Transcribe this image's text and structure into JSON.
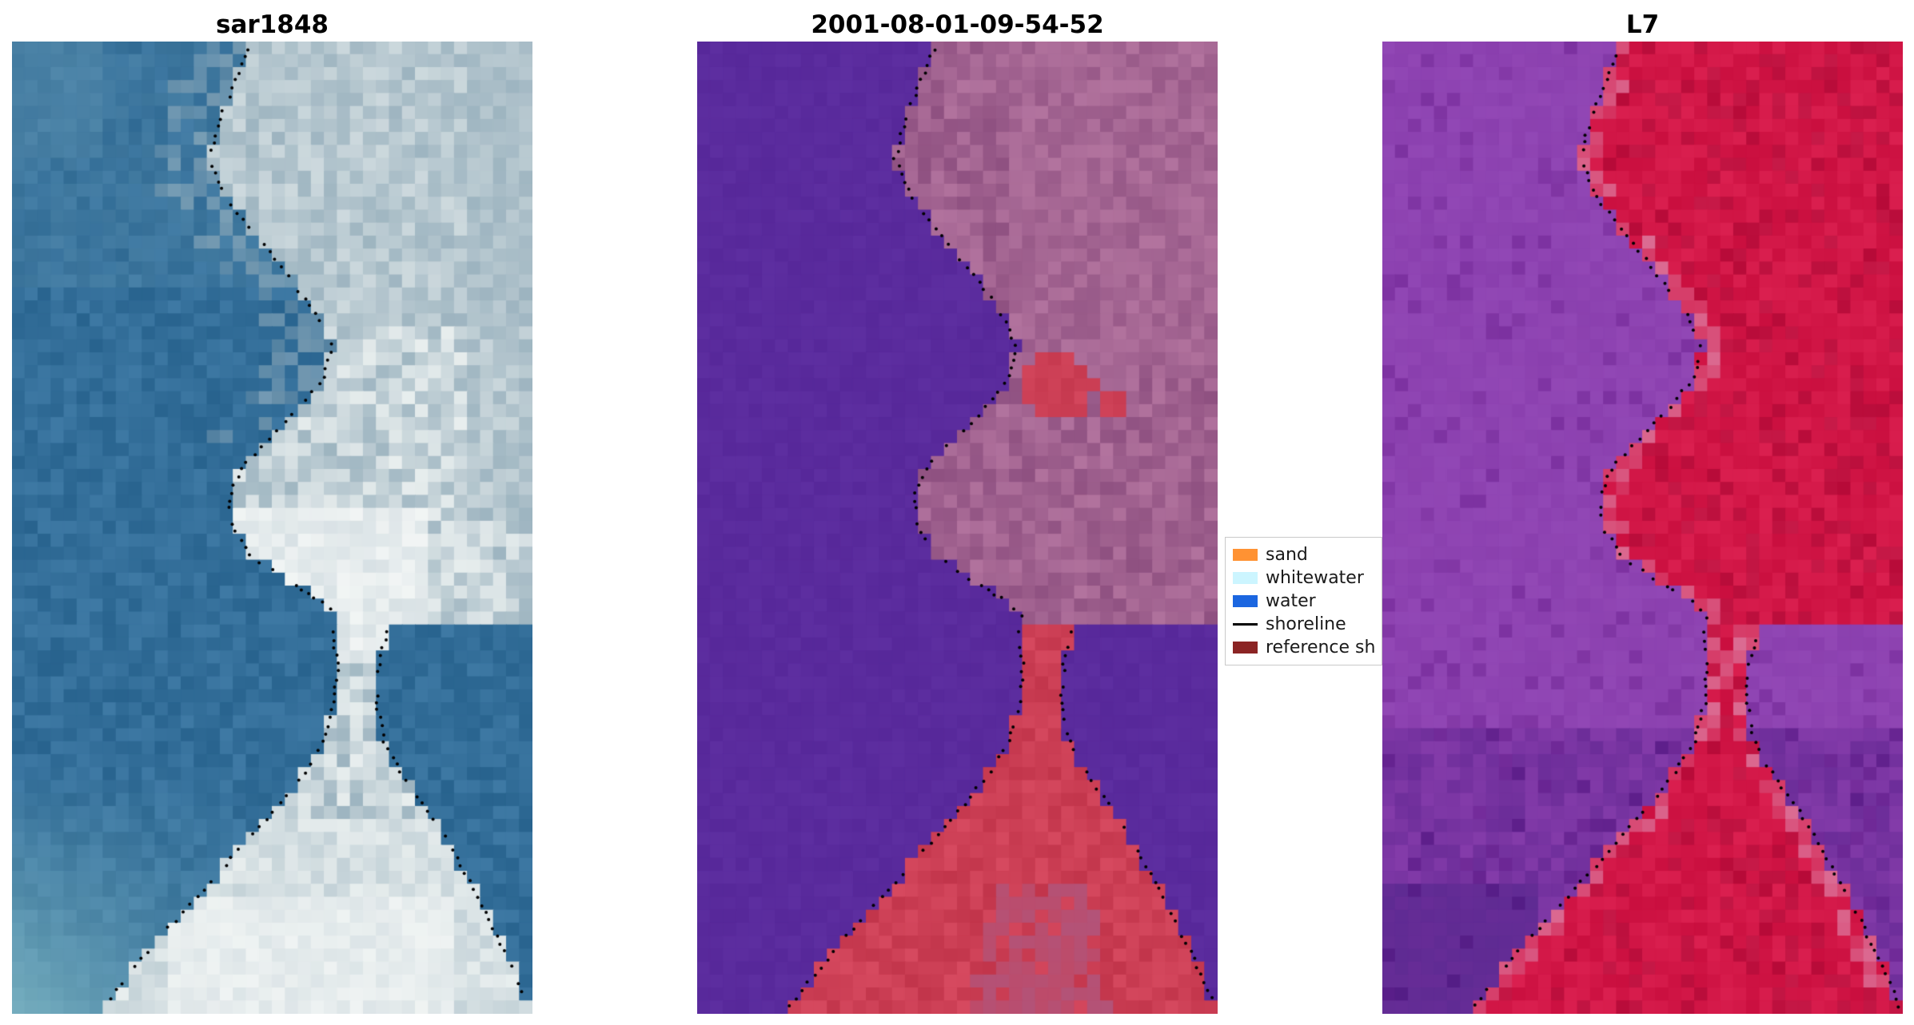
{
  "figure": {
    "background": "#ffffff",
    "panels": [
      {
        "id": "sar1848",
        "title": "sar1848"
      },
      {
        "id": "classified",
        "title": "2001-08-01-09-54-52"
      },
      {
        "id": "l7",
        "title": "L7"
      }
    ],
    "legend": {
      "items": [
        {
          "label": "sand",
          "type": "patch",
          "color": "#ff9233"
        },
        {
          "label": "whitewater",
          "type": "patch",
          "color": "#ccf5ff"
        },
        {
          "label": "water",
          "type": "patch",
          "color": "#1b66e0"
        },
        {
          "label": "shoreline",
          "type": "line",
          "color": "#000000"
        },
        {
          "label": "reference sh",
          "type": "patch",
          "color": "#8b2424"
        }
      ]
    },
    "palettes": {
      "sar": {
        "water": "#336e99",
        "water_light": "#7fb7c4",
        "water_top": "#5a8fae",
        "cloud_dark": "#9db4c0",
        "cloud_mid": "#c2ced3",
        "cloud_light": "#e8eeee",
        "bright": "#f7f9f8"
      },
      "classified": {
        "water": "#5a2b9d",
        "land": "#a2608f",
        "land_light": "#b2739e",
        "land_dark": "#8f5181",
        "sand_red": "#cc3f55"
      },
      "l7": {
        "water": "#8a3fae",
        "water_dark": "#6c2d99",
        "water_deep": "#5f2b93",
        "water_light": "#9b52be",
        "land": "#d21747",
        "land_dark": "#bf1240",
        "land_pink": "#db6b92"
      },
      "shoreline": "#000000"
    }
  },
  "chart_data": [
    {
      "type": "heatmap",
      "title": "sar1848",
      "description": "SAR/optical composite tile: blue-teal water on the left and lower-right, bright white-gray land and surf zone in the upper-right, center neck and bottom; black dotted detected shoreline overlaid along the water-land boundary forming an hourglass/tombolo shape.",
      "overlay": "dotted black shoreline",
      "axes": "none (image panel, no ticks)"
    },
    {
      "type": "heatmap",
      "title": "2001-08-01-09-54-52",
      "description": "Classified scene: flat purple = water (left and flanking the lower sand spit), mauve = land (upper right), red = sand (patch mid-right, narrow central spit and bottom triangle); black dotted shoreline traces the water-land boundary.",
      "legend_entries": [
        "sand",
        "whitewater",
        "water",
        "shoreline",
        "reference sh"
      ],
      "overlay": "dotted black shoreline",
      "axes": "none (image panel, no ticks)"
    },
    {
      "type": "heatmap",
      "title": "L7",
      "description": "Landsat 7 false-color tile: mottled violet-purple water on the left and bottom corners, crimson-red land on the right and bottom triangle with pinkish transition at the edge; black dotted shoreline overlay matching the other panels.",
      "overlay": "dotted black shoreline",
      "axes": "none (image panel, no ticks)"
    }
  ]
}
